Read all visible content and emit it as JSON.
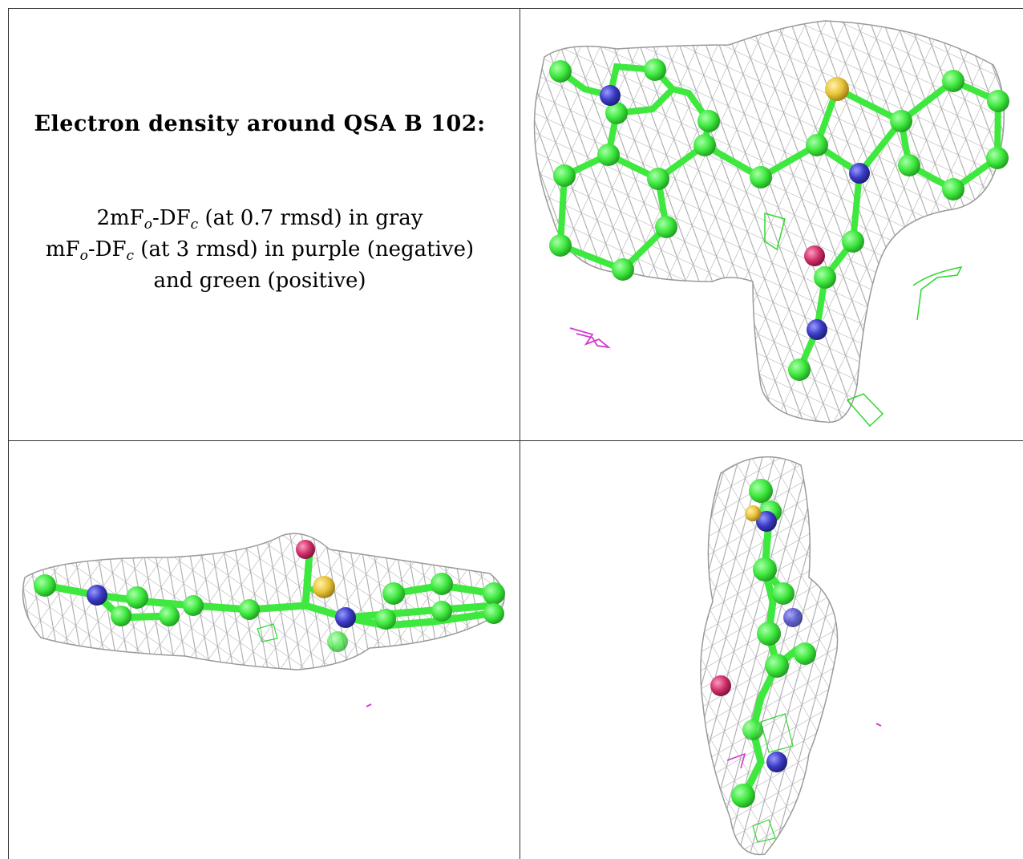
{
  "caption": {
    "title": "Electron density around QSA B 102:",
    "legend": [
      {
        "prefix": "2mF",
        "sub1": "o",
        "mid": "-DF",
        "sub2": "c",
        "rest": " (at 0.7 rmsd) in gray"
      },
      {
        "prefix": "mF",
        "sub1": "o",
        "mid": "-DF",
        "sub2": "c",
        "rest": " (at 3 rmsd) in purple (negative)"
      },
      {
        "text": "and green (positive)"
      }
    ]
  },
  "views": [
    {
      "name": "top-right",
      "description_icon": "molecule-view"
    },
    {
      "name": "bottom-left",
      "description_icon": "molecule-view"
    },
    {
      "name": "bottom-right",
      "description_icon": "molecule-view"
    }
  ],
  "colors": {
    "carbon": "#3ee83e",
    "nitrogen": "#3a3ac4",
    "sulfur": "#e8c23a",
    "oxygen": "#d0306a",
    "mesh_gray": "#9a9a9a",
    "mesh_neg": "#d23ad2",
    "mesh_pos": "#2ed82e",
    "border": "#333333"
  }
}
